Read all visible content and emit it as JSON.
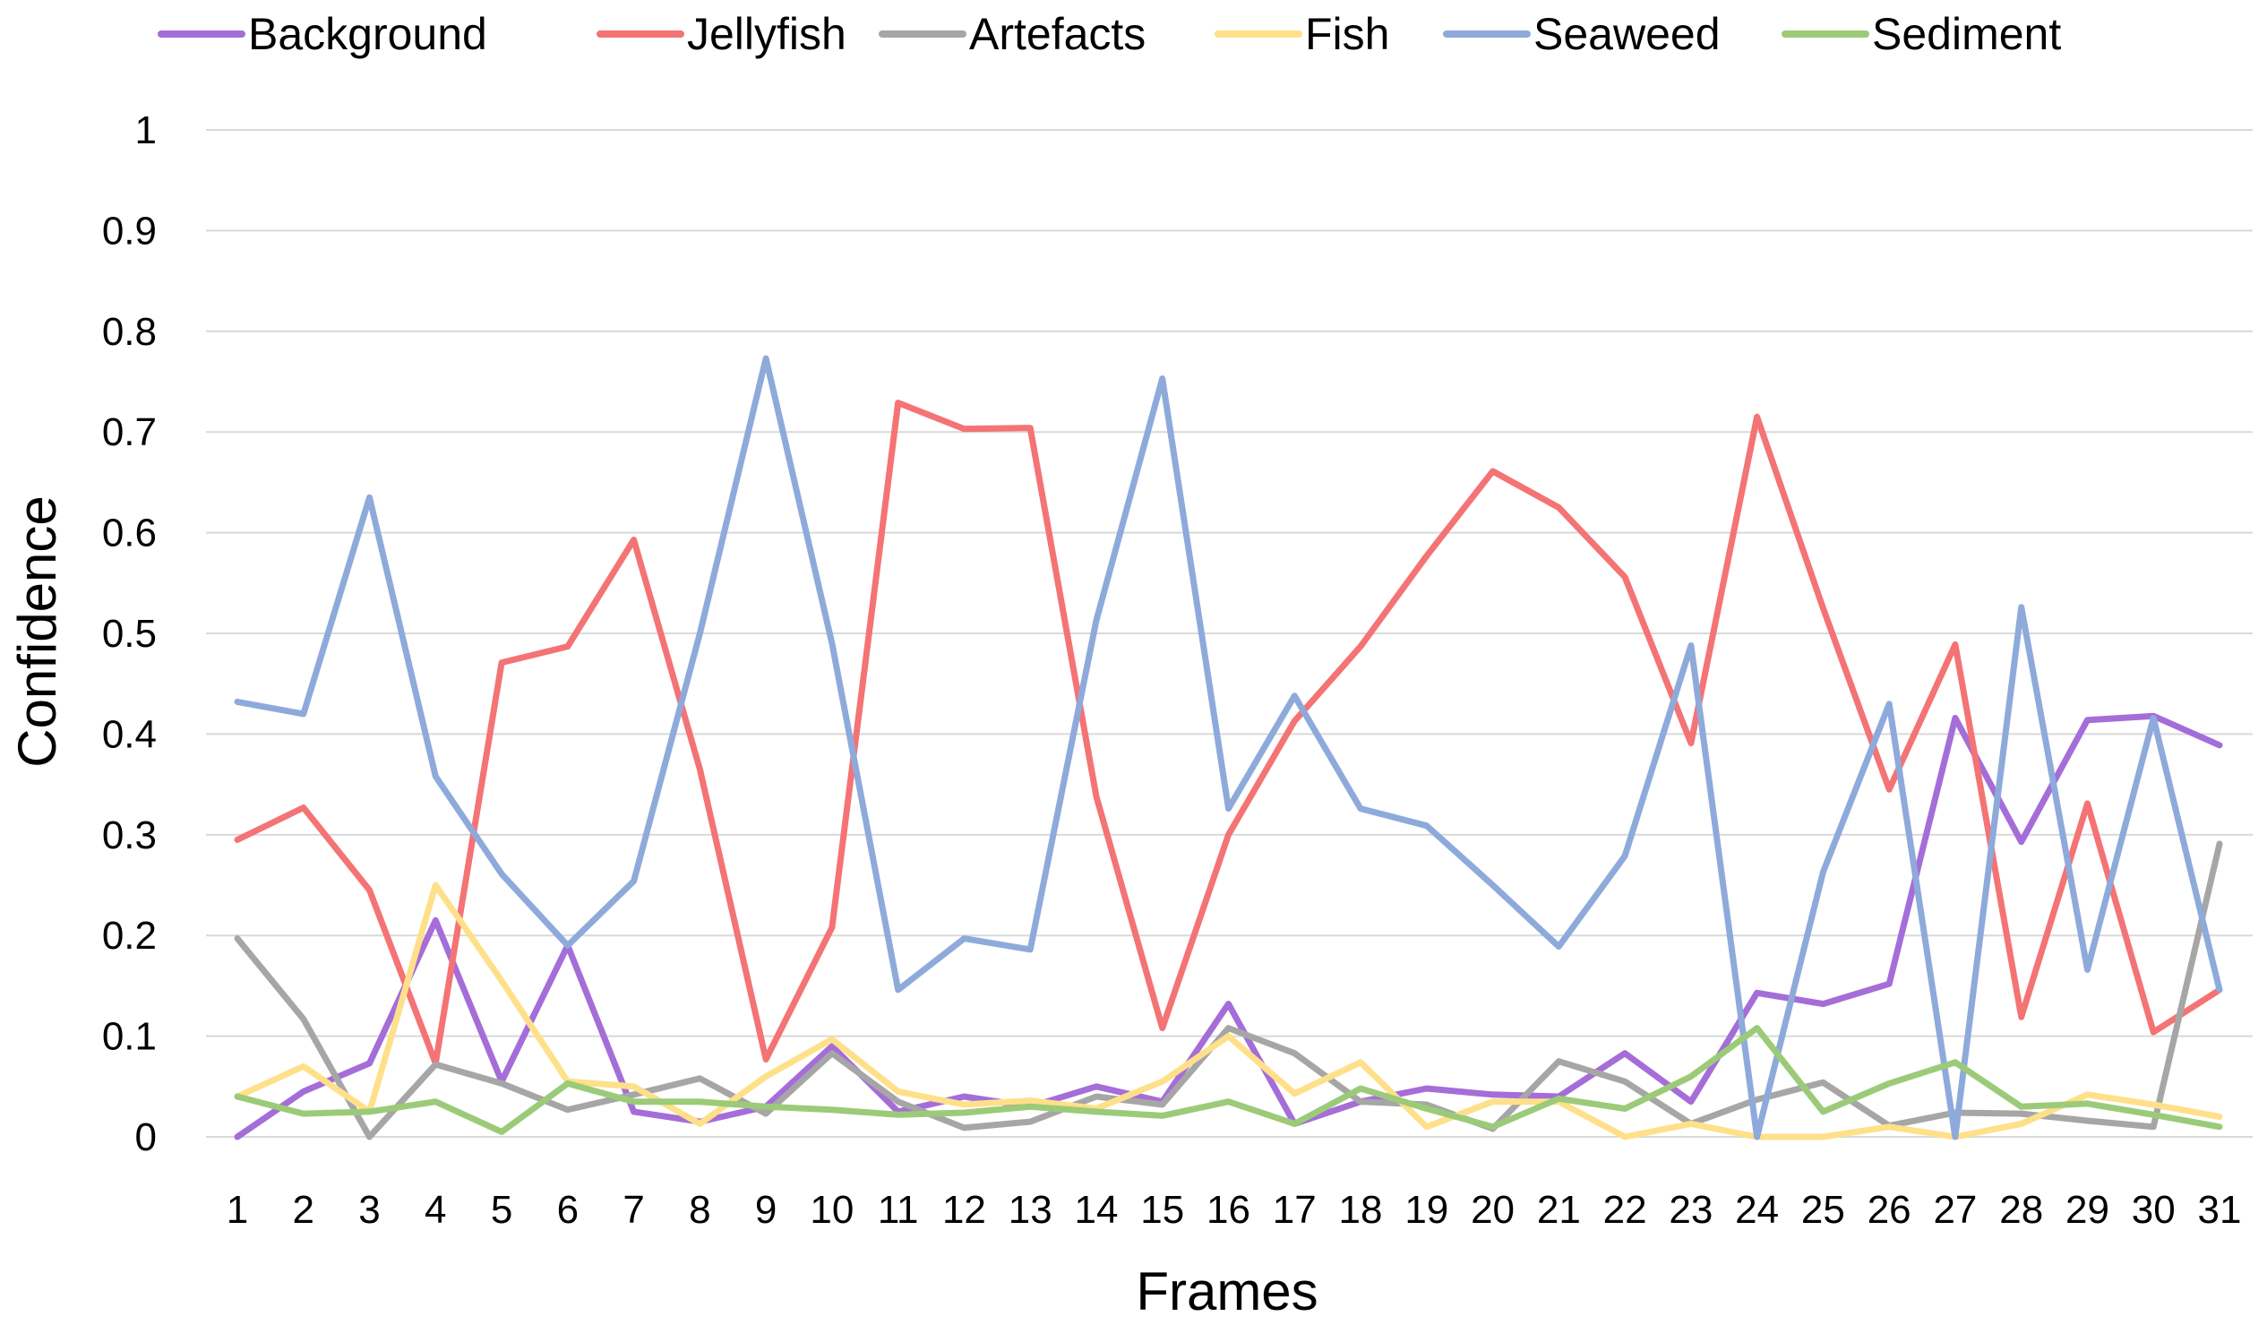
{
  "chart_data": {
    "type": "line",
    "xlabel": "Frames",
    "ylabel": "Confidence",
    "categories": [
      "1",
      "2",
      "3",
      "4",
      "5",
      "6",
      "7",
      "8",
      "9",
      "10",
      "11",
      "12",
      "13",
      "14",
      "15",
      "16",
      "17",
      "18",
      "19",
      "20",
      "21",
      "22",
      "23",
      "24",
      "25",
      "26",
      "27",
      "28",
      "29",
      "30",
      "31"
    ],
    "yticks": [
      "0",
      "0.1",
      "0.2",
      "0.3",
      "0.4",
      "0.5",
      "0.6",
      "0.7",
      "0.8",
      "0.9",
      "1"
    ],
    "ylim": [
      0,
      1
    ],
    "grid": true,
    "legend_position": "top",
    "series": [
      {
        "name": "Background",
        "color": "#a56dd8",
        "values": [
          0.0,
          0.045,
          0.073,
          0.215,
          0.055,
          0.19,
          0.025,
          0.015,
          0.03,
          0.09,
          0.025,
          0.04,
          0.03,
          0.05,
          0.035,
          0.132,
          0.013,
          0.035,
          0.048,
          0.042,
          0.04,
          0.083,
          0.035,
          0.143,
          0.132,
          0.152,
          0.416,
          0.293,
          0.414,
          0.418,
          0.389
        ]
      },
      {
        "name": "Jellyfish",
        "color": "#f47374",
        "values": [
          0.295,
          0.327,
          0.245,
          0.073,
          0.471,
          0.487,
          0.593,
          0.365,
          0.077,
          0.208,
          0.729,
          0.703,
          0.704,
          0.338,
          0.108,
          0.3,
          0.413,
          0.487,
          0.577,
          0.661,
          0.625,
          0.556,
          0.391,
          0.715,
          0.525,
          0.345,
          0.489,
          0.119,
          0.331,
          0.104,
          0.146
        ]
      },
      {
        "name": "Artefacts",
        "color": "#a6a6a6",
        "values": [
          0.197,
          0.117,
          0.0,
          0.072,
          0.053,
          0.027,
          0.042,
          0.058,
          0.023,
          0.083,
          0.035,
          0.009,
          0.015,
          0.04,
          0.032,
          0.108,
          0.083,
          0.035,
          0.032,
          0.008,
          0.075,
          0.055,
          0.013,
          0.037,
          0.054,
          0.011,
          0.024,
          0.023,
          0.016,
          0.01,
          0.291
        ]
      },
      {
        "name": "Fish",
        "color": "#ffe08a",
        "values": [
          0.04,
          0.07,
          0.025,
          0.25,
          0.155,
          0.055,
          0.05,
          0.013,
          0.06,
          0.097,
          0.045,
          0.032,
          0.036,
          0.028,
          0.055,
          0.1,
          0.043,
          0.074,
          0.01,
          0.035,
          0.035,
          0.0,
          0.013,
          0.0,
          0.0,
          0.01,
          0.0,
          0.013,
          0.042,
          0.032,
          0.02
        ]
      },
      {
        "name": "Seaweed",
        "color": "#8eaadb",
        "values": [
          0.432,
          0.42,
          0.635,
          0.358,
          0.261,
          0.19,
          0.254,
          0.5,
          0.773,
          0.49,
          0.146,
          0.197,
          0.186,
          0.513,
          0.753,
          0.326,
          0.438,
          0.326,
          0.309,
          0.25,
          0.189,
          0.279,
          0.488,
          0.0,
          0.263,
          0.43,
          0.0,
          0.526,
          0.166,
          0.416,
          0.146
        ]
      },
      {
        "name": "Sediment",
        "color": "#9bcb78",
        "values": [
          0.04,
          0.023,
          0.025,
          0.035,
          0.005,
          0.053,
          0.035,
          0.035,
          0.03,
          0.027,
          0.022,
          0.024,
          0.03,
          0.025,
          0.021,
          0.035,
          0.013,
          0.048,
          0.028,
          0.01,
          0.038,
          0.028,
          0.06,
          0.108,
          0.025,
          0.053,
          0.074,
          0.03,
          0.033,
          0.022,
          0.01
        ]
      }
    ]
  }
}
